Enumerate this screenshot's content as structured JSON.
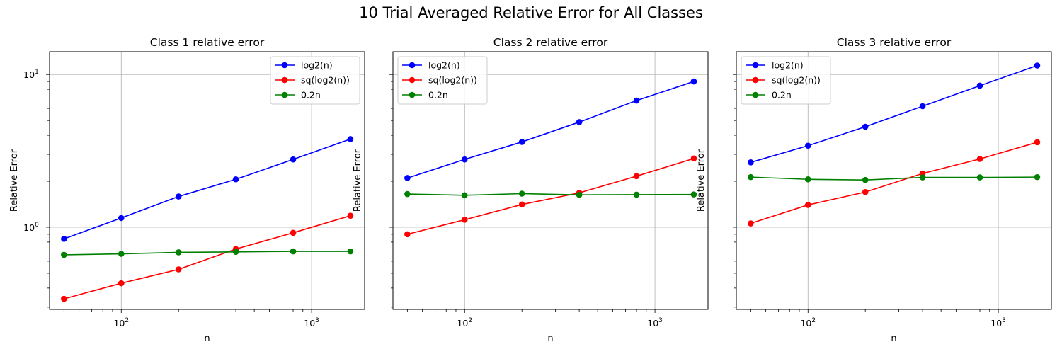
{
  "figure": {
    "title": "10 Trial Averaged Relative Error for All Classes"
  },
  "chart_data": [
    {
      "type": "line",
      "title": "Class 1 relative error",
      "xlabel": "n",
      "ylabel": "Relative Error",
      "xscale": "log",
      "yscale": "log",
      "xlim": [
        42,
        1900
      ],
      "ylim": [
        0.29,
        14.1
      ],
      "x": [
        50,
        100,
        200,
        400,
        800,
        1600
      ],
      "grid": true,
      "legend": "top-right",
      "show_y_ticklabels": true,
      "x_ticklabels": [
        {
          "base": "10",
          "exp": "2",
          "value": 100
        },
        {
          "base": "10",
          "exp": "3",
          "value": 1000
        }
      ],
      "y_ticklabels": [
        {
          "base": "10",
          "exp": "0",
          "value": 1
        },
        {
          "base": "10",
          "exp": "1",
          "value": 10
        }
      ],
      "series": [
        {
          "name": "log2(n)",
          "color": "#0000ff",
          "values": [
            0.84,
            1.15,
            1.59,
            2.06,
            2.78,
            3.78
          ]
        },
        {
          "name": "sq(log2(n))",
          "color": "#ff0000",
          "values": [
            0.34,
            0.43,
            0.53,
            0.72,
            0.92,
            1.19
          ]
        },
        {
          "name": "0.2n",
          "color": "#008000",
          "values": [
            0.66,
            0.67,
            0.685,
            0.69,
            0.695,
            0.695
          ]
        }
      ]
    },
    {
      "type": "line",
      "title": "Class 2 relative error",
      "xlabel": "n",
      "ylabel": "Relative Error",
      "xscale": "log",
      "yscale": "log",
      "xlim": [
        42,
        1900
      ],
      "ylim": [
        0.29,
        14.1
      ],
      "x": [
        50,
        100,
        200,
        400,
        800,
        1600
      ],
      "grid": true,
      "legend": "top-left",
      "show_y_ticklabels": false,
      "x_ticklabels": [
        {
          "base": "10",
          "exp": "2",
          "value": 100
        },
        {
          "base": "10",
          "exp": "3",
          "value": 1000
        }
      ],
      "y_ticklabels": [],
      "series": [
        {
          "name": "log2(n)",
          "color": "#0000ff",
          "values": [
            2.1,
            2.78,
            3.62,
            4.88,
            6.75,
            9.0
          ]
        },
        {
          "name": "sq(log2(n))",
          "color": "#ff0000",
          "values": [
            0.9,
            1.12,
            1.41,
            1.68,
            2.16,
            2.82
          ]
        },
        {
          "name": "0.2n",
          "color": "#008000",
          "values": [
            1.65,
            1.62,
            1.66,
            1.63,
            1.635,
            1.64
          ]
        }
      ]
    },
    {
      "type": "line",
      "title": "Class 3 relative error",
      "xlabel": "n",
      "ylabel": "Relative Error",
      "xscale": "log",
      "yscale": "log",
      "xlim": [
        42,
        1900
      ],
      "ylim": [
        0.29,
        14.1
      ],
      "x": [
        50,
        100,
        200,
        400,
        800,
        1600
      ],
      "grid": true,
      "legend": "top-left",
      "show_y_ticklabels": false,
      "x_ticklabels": [
        {
          "base": "10",
          "exp": "2",
          "value": 100
        },
        {
          "base": "10",
          "exp": "3",
          "value": 1000
        }
      ],
      "y_ticklabels": [],
      "series": [
        {
          "name": "log2(n)",
          "color": "#0000ff",
          "values": [
            2.66,
            3.42,
            4.55,
            6.2,
            8.45,
            11.45
          ]
        },
        {
          "name": "sq(log2(n))",
          "color": "#ff0000",
          "values": [
            1.06,
            1.4,
            1.7,
            2.25,
            2.8,
            3.6
          ]
        },
        {
          "name": "0.2n",
          "color": "#008000",
          "values": [
            2.13,
            2.06,
            2.04,
            2.12,
            2.12,
            2.13
          ]
        }
      ]
    }
  ]
}
